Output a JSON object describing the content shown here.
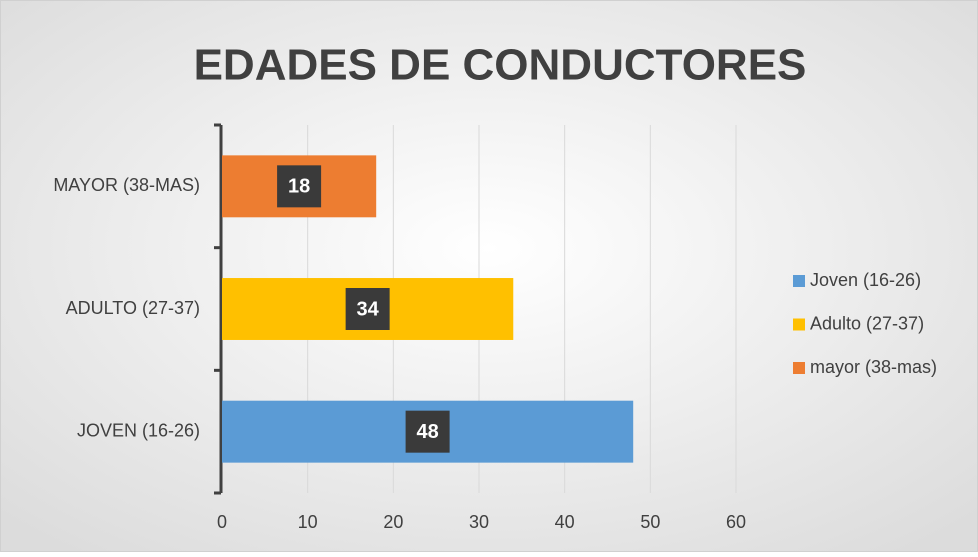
{
  "chart_data": {
    "type": "bar",
    "orientation": "horizontal",
    "title": "EDADES DE CONDUCTORES",
    "categories": [
      "JOVEN (16-26)",
      "ADULTO (27-37)",
      "MAYOR (38-MAS)"
    ],
    "series": [
      {
        "name": "Joven (16-26)",
        "color": "#5b9bd5",
        "values": [
          48,
          null,
          null
        ]
      },
      {
        "name": "Adulto (27-37)",
        "color": "#ffc000",
        "values": [
          null,
          34,
          null
        ]
      },
      {
        "name": "mayor (38-mas)",
        "color": "#ed7d31",
        "values": [
          null,
          null,
          18
        ]
      }
    ],
    "xlim": [
      0,
      60
    ],
    "xticks": [
      0,
      10,
      20,
      30,
      40,
      50,
      60
    ],
    "grid": true,
    "legend": "right"
  }
}
